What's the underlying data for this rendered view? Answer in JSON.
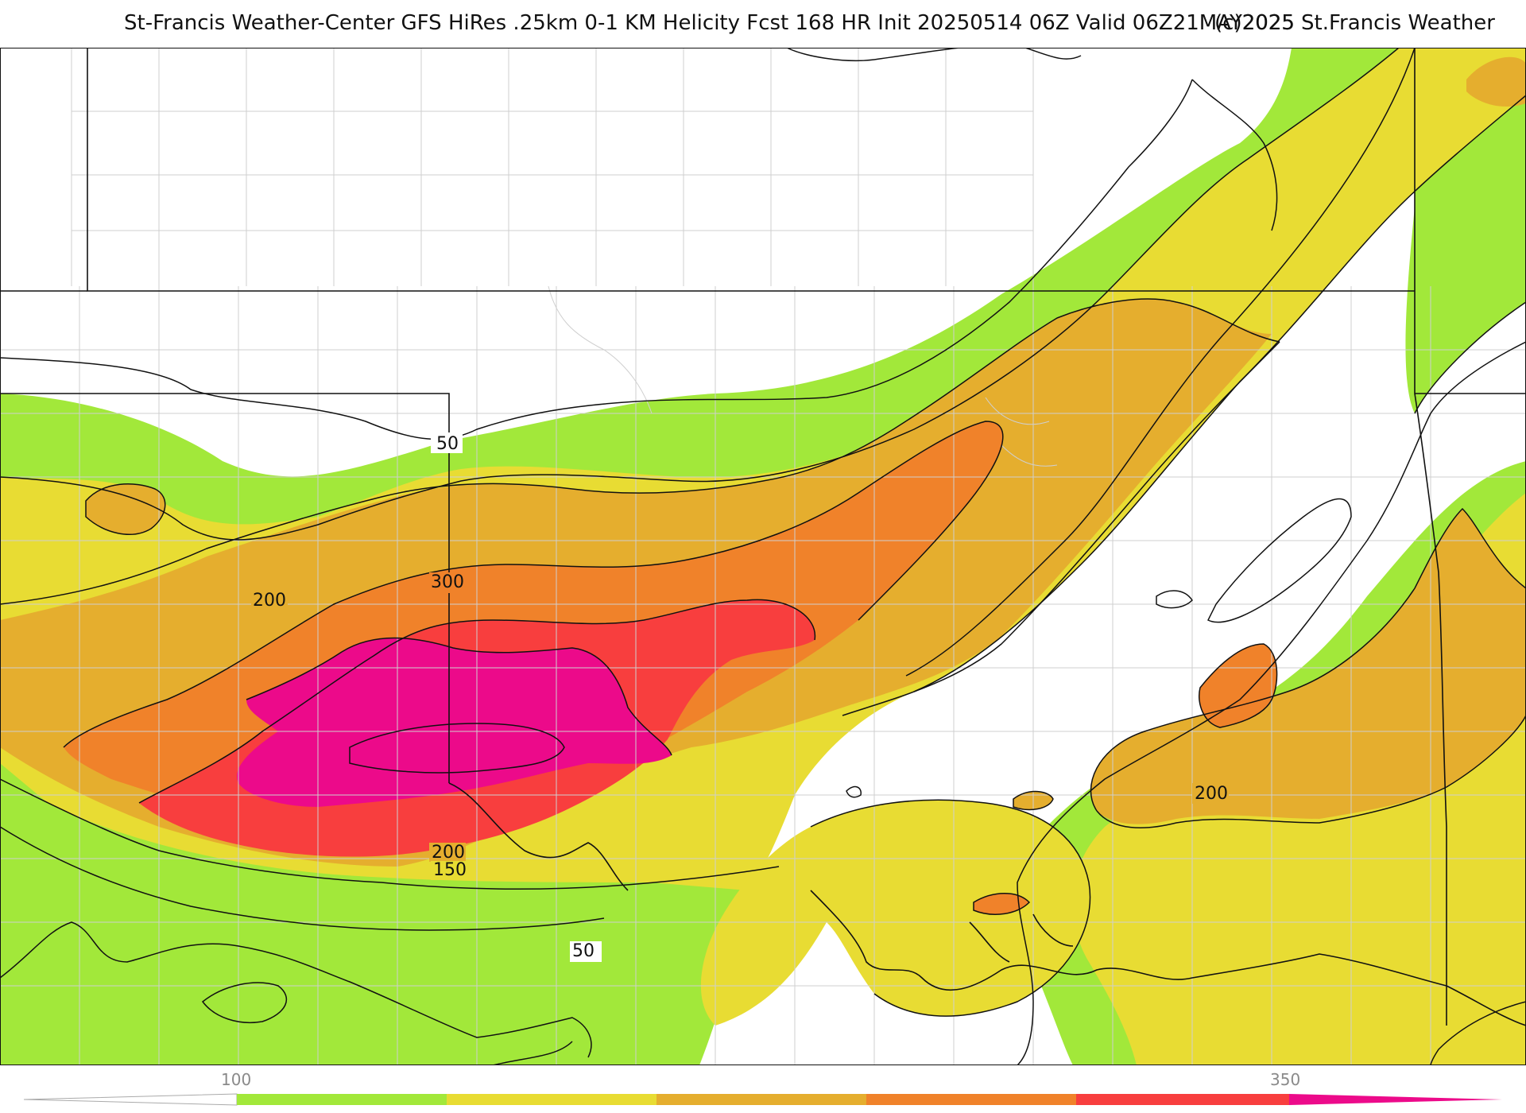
{
  "title": {
    "main": "St-Francis Weather-Center GFS HiRes .25km 0-1 KM Helicity Fcst 168 HR Init 20250514 06Z  Valid 06Z21MAY2025",
    "credit": "(c)2025 St.Francis Weather"
  },
  "contour_labels": {
    "c50a": "50",
    "c200a": "200",
    "c300": "300",
    "c200b": "200",
    "c150": "150",
    "c50b": "50",
    "c200c": "200"
  },
  "colorbar": {
    "tick_labels": [
      "100",
      "350"
    ],
    "colors": [
      "#a2e83a",
      "#e8dc33",
      "#e5ae2e",
      "#f0822a",
      "#f83e3e",
      "#ec0a8a"
    ]
  },
  "colors": {
    "green": "#a2e83a",
    "yellow": "#e8dc33",
    "gold": "#e5ae2e",
    "orange": "#f0822a",
    "red": "#f83e3e",
    "magenta": "#ec0a8a"
  }
}
